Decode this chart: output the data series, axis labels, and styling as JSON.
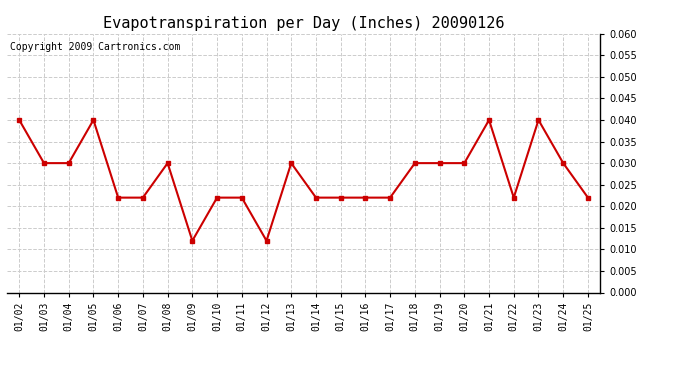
{
  "title": "Evapotranspiration per Day (Inches) 20090126",
  "copyright_text": "Copyright 2009 Cartronics.com",
  "x_labels": [
    "01/02",
    "01/03",
    "01/04",
    "01/05",
    "01/06",
    "01/07",
    "01/08",
    "01/09",
    "01/10",
    "01/11",
    "01/12",
    "01/13",
    "01/14",
    "01/15",
    "01/16",
    "01/17",
    "01/18",
    "01/19",
    "01/20",
    "01/21",
    "01/22",
    "01/23",
    "01/24",
    "01/25"
  ],
  "y_values": [
    0.04,
    0.03,
    0.03,
    0.04,
    0.022,
    0.022,
    0.03,
    0.012,
    0.022,
    0.022,
    0.012,
    0.03,
    0.022,
    0.022,
    0.022,
    0.022,
    0.03,
    0.03,
    0.03,
    0.04,
    0.022,
    0.04,
    0.03,
    0.022
  ],
  "ylim": [
    0.0,
    0.06
  ],
  "yticks": [
    0.0,
    0.005,
    0.01,
    0.015,
    0.02,
    0.025,
    0.03,
    0.035,
    0.04,
    0.045,
    0.05,
    0.055,
    0.06
  ],
  "line_color": "#cc0000",
  "marker": "s",
  "marker_size": 3,
  "background_color": "#ffffff",
  "grid_color": "#cccccc",
  "title_fontsize": 11,
  "tick_fontsize": 7,
  "copyright_fontsize": 7
}
